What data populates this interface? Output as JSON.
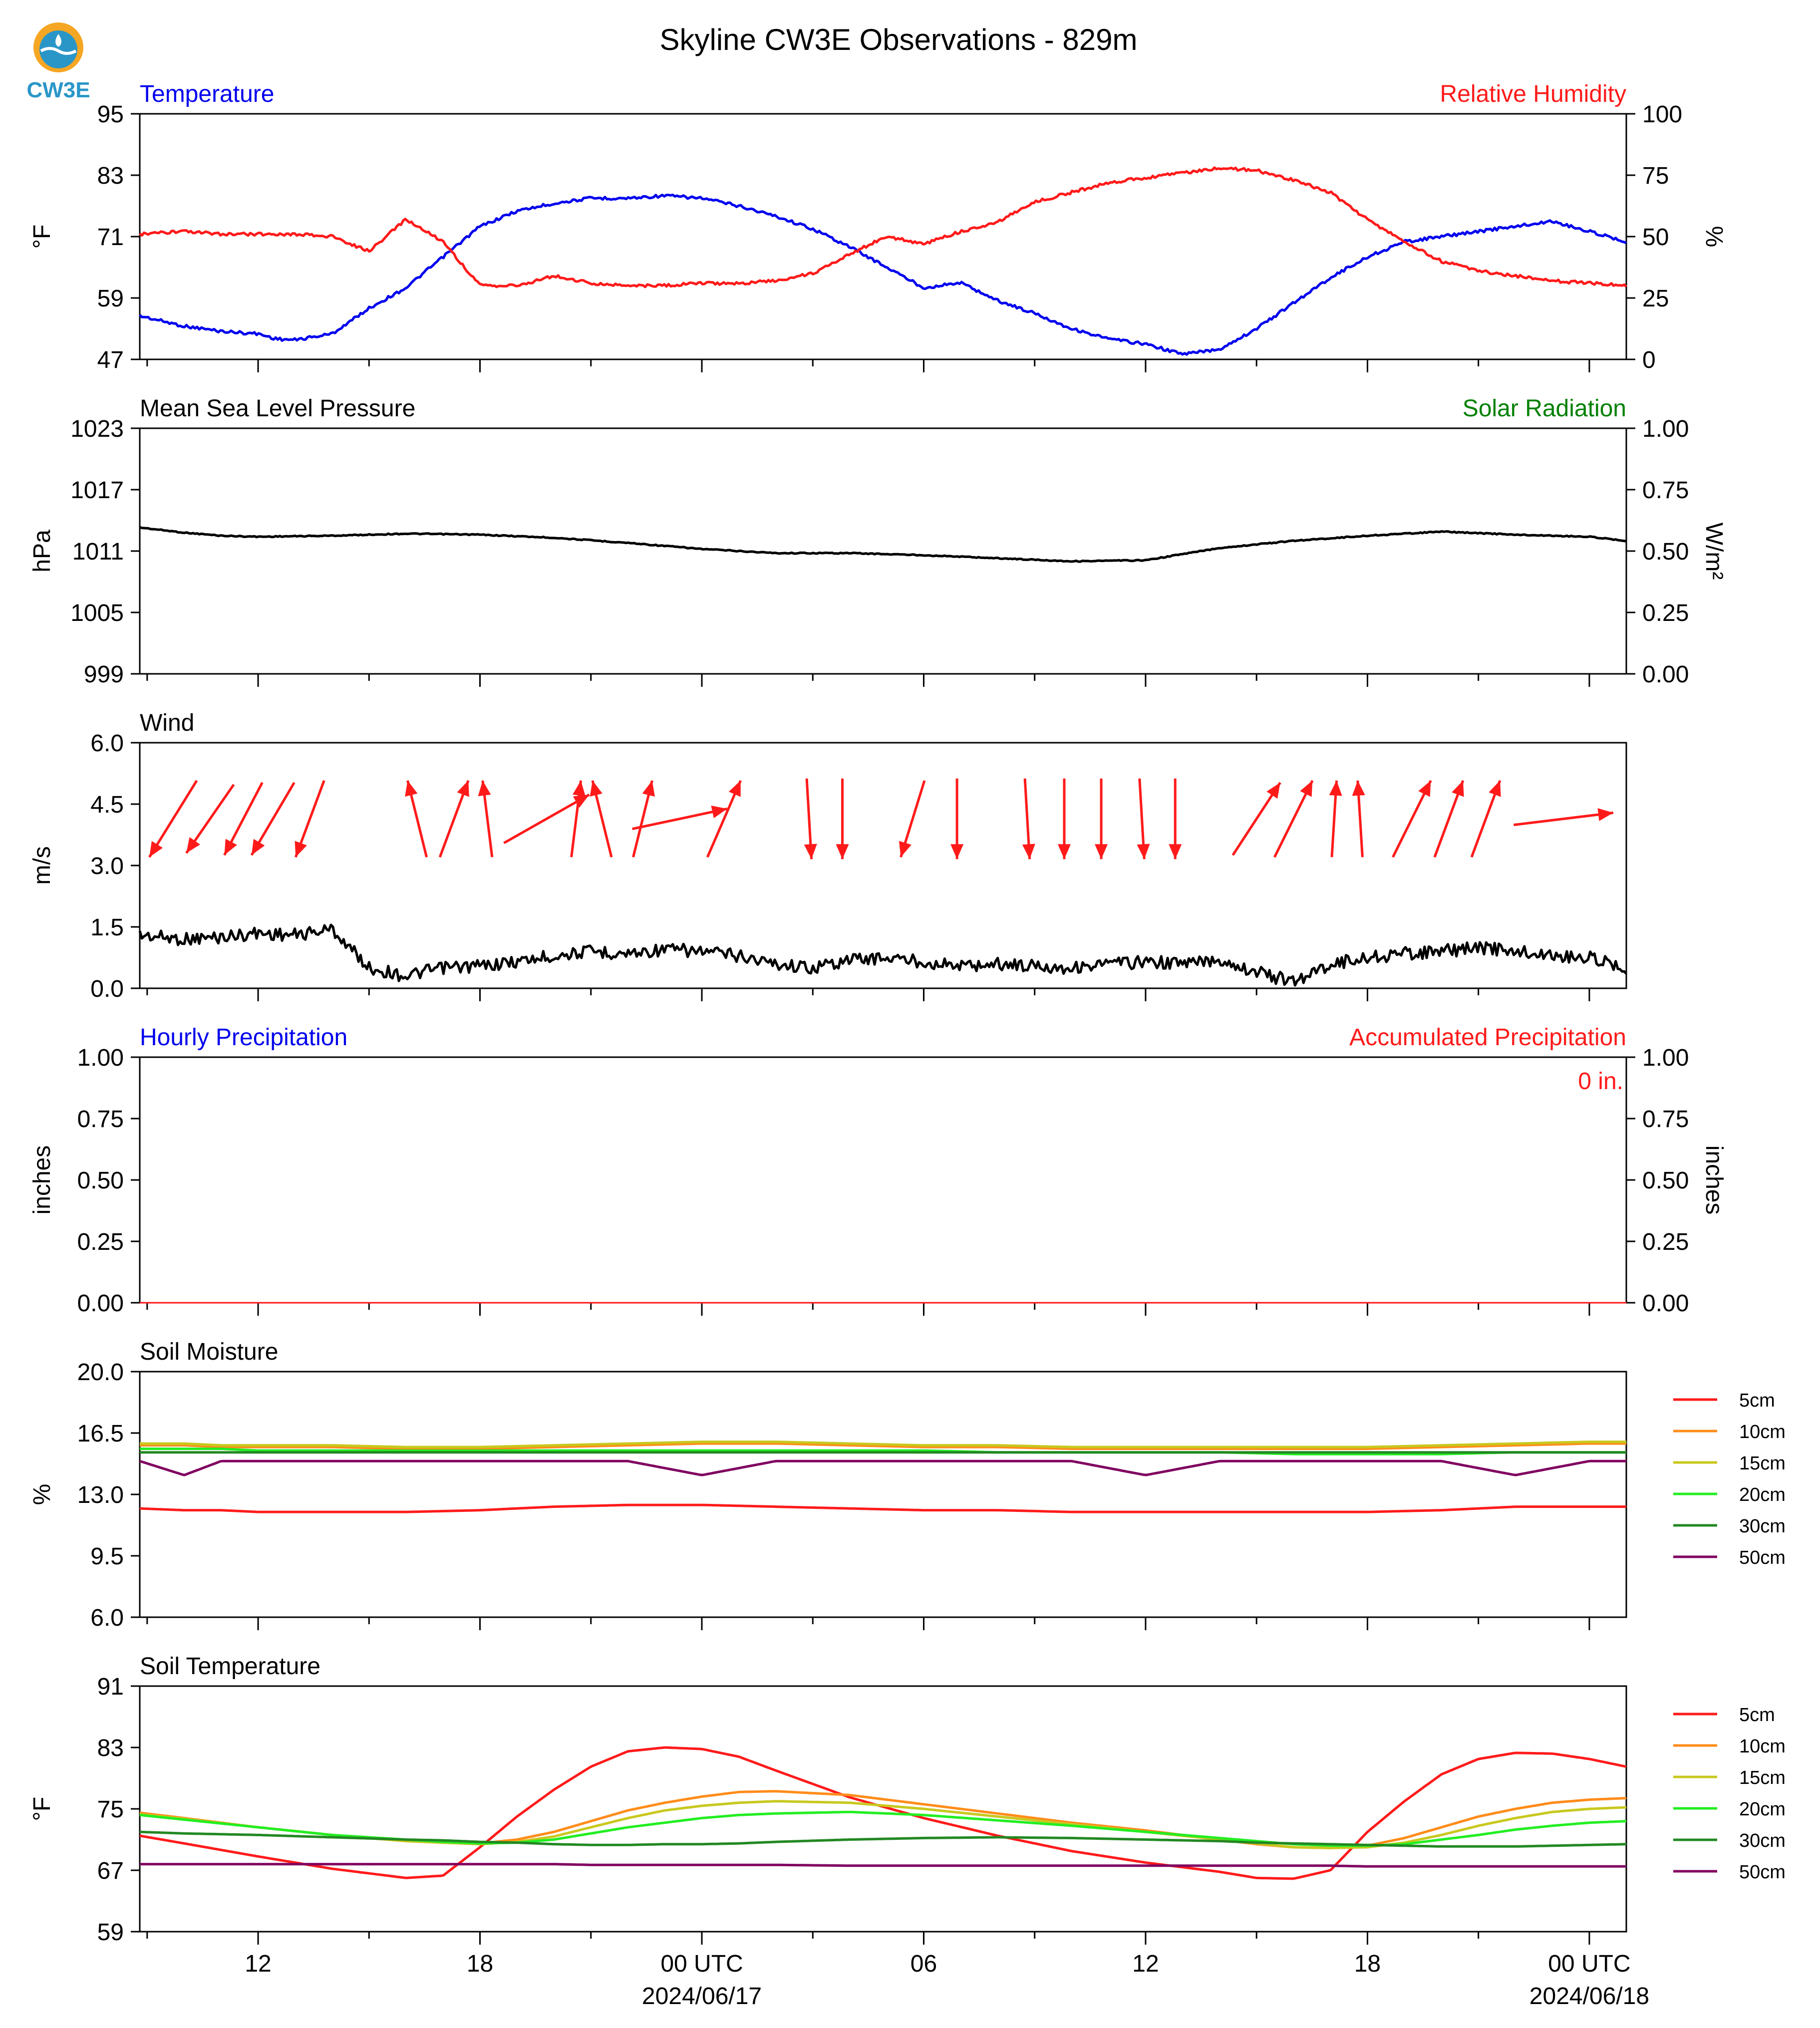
{
  "title": "Skyline CW3E Observations - 829m",
  "logo": {
    "text": "CW3E",
    "color": "#2a96c8",
    "accent": "#f5a623"
  },
  "colors": {
    "blue": "#0000ee",
    "red": "#ff1a1a",
    "green": "#008000",
    "black": "#000000"
  },
  "x_axis": {
    "ticks": [
      {
        "h": 12,
        "label": "12"
      },
      {
        "h": 18,
        "label": "18"
      },
      {
        "h": 24,
        "label": "00 UTC",
        "sublabel": "2024/06/17"
      },
      {
        "h": 30,
        "label": "06"
      },
      {
        "h": 36,
        "label": "12"
      },
      {
        "h": 42,
        "label": "18"
      },
      {
        "h": 48,
        "label": "00 UTC",
        "sublabel": "2024/06/18"
      }
    ]
  },
  "chart_data": [
    {
      "type": "line",
      "title_left": "Temperature",
      "title_right": "Relative Humidity",
      "ylabel": "°F",
      "ylabel_right": "%",
      "ylim": [
        47,
        95
      ],
      "yticks": [
        "95",
        "83",
        "71",
        "59",
        "47"
      ],
      "ylim_right": [
        0,
        100
      ],
      "yticks_right": [
        "100",
        "75",
        "50",
        "25",
        "0"
      ],
      "x": [
        8.8,
        10,
        11,
        12,
        12.5,
        13,
        14,
        15,
        16,
        17,
        18,
        19,
        20,
        21,
        22,
        23,
        24,
        25,
        26,
        27,
        28,
        29,
        30,
        31,
        32,
        33,
        34,
        35,
        36,
        37,
        38,
        39,
        40,
        41,
        42,
        43,
        44,
        45,
        46,
        47,
        48,
        49
      ],
      "series": [
        {
          "name": "Temperature",
          "color": "#0000ee",
          "axis": "left",
          "values": [
            55.5,
            53.5,
            52.5,
            52,
            51,
            50.8,
            52,
            57,
            61,
            67,
            73,
            76,
            77.5,
            78.5,
            78.5,
            79,
            78.5,
            77,
            75,
            72.5,
            69,
            65,
            61,
            62,
            58.5,
            56,
            53,
            51,
            50,
            48,
            49,
            53,
            58,
            63,
            67,
            70,
            71,
            72,
            73,
            74,
            72,
            70
          ]
        },
        {
          "name": "Relative Humidity",
          "color": "#ff1a1a",
          "axis": "right",
          "values": [
            51,
            52,
            51,
            51,
            51,
            51,
            50,
            44,
            57,
            48,
            30,
            30,
            34,
            31,
            30,
            30,
            31,
            31,
            32,
            35,
            43,
            50,
            47,
            52,
            56,
            64,
            68,
            72,
            74,
            76,
            78,
            77,
            73,
            68,
            57,
            48,
            40,
            36,
            34,
            32,
            31,
            30
          ]
        }
      ]
    },
    {
      "type": "line",
      "title_left": "Mean Sea Level Pressure",
      "title_right": "Solar Radiation",
      "ylabel": "hPa",
      "ylabel_right": "W/m²",
      "ylim": [
        999,
        1023
      ],
      "yticks": [
        "1023",
        "1017",
        "1011",
        "1005",
        "999"
      ],
      "ylim_right": [
        0,
        1
      ],
      "yticks_right": [
        "1.00",
        "0.75",
        "0.50",
        "0.25",
        "0.00"
      ],
      "x": [
        8.8,
        10,
        11,
        12,
        14,
        16,
        18,
        20,
        22,
        24,
        26,
        28,
        30,
        32,
        34,
        36,
        38,
        40,
        42,
        44,
        46,
        48,
        49
      ],
      "series": [
        {
          "name": "Mean Sea Level Pressure",
          "color": "#000000",
          "axis": "left",
          "values": [
            1013.3,
            1012.8,
            1012.5,
            1012.4,
            1012.5,
            1012.7,
            1012.6,
            1012.3,
            1011.8,
            1011.2,
            1010.8,
            1010.8,
            1010.6,
            1010.3,
            1010.0,
            1010.1,
            1011.3,
            1012.0,
            1012.5,
            1012.9,
            1012.6,
            1012.4,
            1012.0
          ]
        }
      ]
    },
    {
      "type": "line",
      "title_left": "Wind",
      "ylabel": "m/s",
      "ylim": [
        0,
        6
      ],
      "yticks": [
        "6.0",
        "4.5",
        "3.0",
        "1.5",
        "0.0"
      ],
      "x": [
        8.8,
        10,
        11,
        12,
        13,
        14,
        15,
        16,
        17,
        18,
        19,
        20,
        21,
        22,
        23,
        24,
        25,
        26,
        27,
        28,
        29,
        30,
        31,
        32,
        33,
        34,
        35,
        36,
        37,
        38,
        39,
        40,
        41,
        42,
        43,
        44,
        45,
        46,
        47,
        48,
        49
      ],
      "series": [
        {
          "name": "Wind",
          "color": "#000000",
          "axis": "left",
          "values": [
            1.3,
            1.2,
            1.25,
            1.35,
            1.3,
            1.45,
            0.5,
            0.3,
            0.5,
            0.55,
            0.65,
            0.8,
            0.9,
            0.85,
            0.95,
            0.9,
            0.8,
            0.6,
            0.5,
            0.7,
            0.75,
            0.65,
            0.55,
            0.6,
            0.55,
            0.5,
            0.6,
            0.65,
            0.6,
            0.7,
            0.4,
            0.15,
            0.6,
            0.75,
            0.85,
            0.9,
            1.0,
            0.9,
            0.8,
            0.75,
            0.5
          ]
        }
      ],
      "arrows_color": "#ff1a1a",
      "arrows": [
        {
          "x": 9.7,
          "dx": -1.0,
          "dy": -1.9
        },
        {
          "x": 10.7,
          "dx": -1.0,
          "dy": -1.7
        },
        {
          "x": 11.6,
          "dx": -0.8,
          "dy": -1.8
        },
        {
          "x": 12.4,
          "dx": -0.9,
          "dy": -1.8
        },
        {
          "x": 13.4,
          "dx": -0.6,
          "dy": -1.9
        },
        {
          "x": 16.3,
          "dx": -0.4,
          "dy": 1.9
        },
        {
          "x": 17.3,
          "dx": 0.6,
          "dy": 1.9
        },
        {
          "x": 18.2,
          "dx": -0.2,
          "dy": 1.9
        },
        {
          "x": 19.8,
          "dx": 1.8,
          "dy": 1.2
        },
        {
          "x": 20.6,
          "dx": 0.2,
          "dy": 1.9
        },
        {
          "x": 21.3,
          "dx": -0.4,
          "dy": 1.9
        },
        {
          "x": 22.4,
          "dx": 0.4,
          "dy": 1.9
        },
        {
          "x": 23.4,
          "dx": 2.0,
          "dy": 0.5
        },
        {
          "x": 24.6,
          "dx": 0.7,
          "dy": 1.9
        },
        {
          "x": 26.9,
          "dx": 0.1,
          "dy": -2.0
        },
        {
          "x": 27.8,
          "dx": 0.0,
          "dy": -2.0
        },
        {
          "x": 29.7,
          "dx": -0.5,
          "dy": -1.9
        },
        {
          "x": 30.9,
          "dx": 0.0,
          "dy": -2.0
        },
        {
          "x": 32.8,
          "dx": 0.1,
          "dy": -2.0
        },
        {
          "x": 33.8,
          "dx": 0.0,
          "dy": -2.0
        },
        {
          "x": 34.8,
          "dx": 0.0,
          "dy": -2.0
        },
        {
          "x": 35.9,
          "dx": 0.1,
          "dy": -2.0
        },
        {
          "x": 36.8,
          "dx": 0.0,
          "dy": -2.0
        },
        {
          "x": 39.0,
          "dx": 1.0,
          "dy": 1.8
        },
        {
          "x": 40.0,
          "dx": 0.8,
          "dy": 1.9
        },
        {
          "x": 41.1,
          "dx": 0.1,
          "dy": 1.9
        },
        {
          "x": 41.8,
          "dx": -0.1,
          "dy": 1.9
        },
        {
          "x": 43.2,
          "dx": 0.8,
          "dy": 1.9
        },
        {
          "x": 44.2,
          "dx": 0.6,
          "dy": 1.9
        },
        {
          "x": 45.2,
          "dx": 0.6,
          "dy": 1.9
        },
        {
          "x": 47.3,
          "dx": 2.1,
          "dy": 0.3
        }
      ]
    },
    {
      "type": "bar",
      "title_left": "Hourly Precipitation",
      "title_right": "Accumulated Precipitation",
      "annotation": "0 in.",
      "ylabel": "inches",
      "ylabel_right": "inches",
      "ylim": [
        0,
        1
      ],
      "yticks": [
        "1.00",
        "0.75",
        "0.50",
        "0.25",
        "0.00"
      ],
      "ylim_right": [
        0,
        1
      ],
      "yticks_right": [
        "1.00",
        "0.75",
        "0.50",
        "0.25",
        "0.00"
      ],
      "x": [
        8.8,
        49
      ],
      "series": [
        {
          "name": "Hourly Precipitation",
          "color": "#0000ee",
          "axis": "left",
          "values": [
            0,
            0
          ]
        },
        {
          "name": "Accumulated Precipitation",
          "color": "#ff1a1a",
          "axis": "right",
          "values": [
            0,
            0
          ]
        }
      ]
    },
    {
      "type": "line",
      "title_left": "Soil Moisture",
      "ylabel": "%",
      "ylim": [
        6,
        20
      ],
      "yticks": [
        "20.0",
        "16.5",
        "13.0",
        "9.5",
        "6.0"
      ],
      "x": [
        8.8,
        10,
        11,
        12,
        14,
        16,
        18,
        20,
        22,
        24,
        26,
        28,
        30,
        32,
        34,
        36,
        38,
        40,
        42,
        44,
        46,
        48,
        49
      ],
      "series": [
        {
          "name": "5cm",
          "color": "#ff1a1a",
          "values": [
            12.2,
            12.1,
            12.1,
            12.0,
            12.0,
            12.0,
            12.1,
            12.3,
            12.4,
            12.4,
            12.3,
            12.2,
            12.1,
            12.1,
            12.0,
            12.0,
            12.0,
            12.0,
            12.0,
            12.1,
            12.3,
            12.3,
            12.3
          ]
        },
        {
          "name": "10cm",
          "color": "#ff8c1a",
          "values": [
            15.8,
            15.8,
            15.7,
            15.7,
            15.7,
            15.6,
            15.6,
            15.7,
            15.8,
            15.9,
            15.9,
            15.8,
            15.7,
            15.7,
            15.6,
            15.6,
            15.6,
            15.6,
            15.6,
            15.7,
            15.8,
            15.9,
            15.9
          ]
        },
        {
          "name": "15cm",
          "color": "#c8c81e",
          "values": [
            15.9,
            15.9,
            15.8,
            15.8,
            15.8,
            15.7,
            15.7,
            15.8,
            15.9,
            16.0,
            16.0,
            15.9,
            15.8,
            15.8,
            15.7,
            15.7,
            15.7,
            15.7,
            15.7,
            15.8,
            15.9,
            16.0,
            16.0
          ]
        },
        {
          "name": "20cm",
          "color": "#22ee22",
          "values": [
            15.6,
            15.6,
            15.6,
            15.5,
            15.5,
            15.5,
            15.5,
            15.5,
            15.5,
            15.5,
            15.5,
            15.5,
            15.5,
            15.4,
            15.4,
            15.4,
            15.4,
            15.3,
            15.3,
            15.3,
            15.4,
            15.4,
            15.4
          ]
        },
        {
          "name": "30cm",
          "color": "#228822",
          "values": [
            15.4,
            15.4,
            15.4,
            15.4,
            15.4,
            15.4,
            15.4,
            15.4,
            15.4,
            15.4,
            15.4,
            15.4,
            15.4,
            15.4,
            15.4,
            15.4,
            15.4,
            15.4,
            15.4,
            15.4,
            15.4,
            15.4,
            15.4
          ]
        },
        {
          "name": "50cm",
          "color": "#800060",
          "values": [
            14.9,
            14.1,
            14.9,
            14.9,
            14.9,
            14.9,
            14.9,
            14.9,
            14.9,
            14.1,
            14.9,
            14.9,
            14.9,
            14.9,
            14.9,
            14.1,
            14.9,
            14.9,
            14.9,
            14.9,
            14.1,
            14.9,
            14.9
          ]
        }
      ]
    },
    {
      "type": "line",
      "title_left": "Soil Temperature",
      "ylabel": "°F",
      "ylim": [
        59,
        91
      ],
      "yticks": [
        "91",
        "83",
        "75",
        "67",
        "59"
      ],
      "x": [
        8.8,
        10,
        12,
        14,
        16,
        17,
        18,
        19,
        20,
        21,
        22,
        23,
        24,
        25,
        26,
        28,
        30,
        32,
        34,
        36,
        38,
        39,
        40,
        41,
        42,
        43,
        44,
        45,
        46,
        47,
        48,
        49
      ],
      "series": [
        {
          "name": "5cm",
          "color": "#ff1a1a",
          "values": [
            71.5,
            70.5,
            68.8,
            67.2,
            66.0,
            66.3,
            70.0,
            74.0,
            77.5,
            80.5,
            82.5,
            83.0,
            82.8,
            81.8,
            80.0,
            76.5,
            73.8,
            71.5,
            69.5,
            68.0,
            66.8,
            66.0,
            65.9,
            67.0,
            72.0,
            76.0,
            79.5,
            81.5,
            82.3,
            82.2,
            81.5,
            80.5
          ]
        },
        {
          "name": "10cm",
          "color": "#ff8c1a",
          "values": [
            74.5,
            73.8,
            72.6,
            71.6,
            70.8,
            70.6,
            70.5,
            71.0,
            72.0,
            73.4,
            74.8,
            75.8,
            76.6,
            77.2,
            77.3,
            76.8,
            75.6,
            74.4,
            73.2,
            72.2,
            71.0,
            70.4,
            70.0,
            69.9,
            70.2,
            71.2,
            72.6,
            74.0,
            75.0,
            75.8,
            76.2,
            76.4
          ]
        },
        {
          "name": "15cm",
          "color": "#c8c81e",
          "values": [
            74.3,
            73.7,
            72.6,
            71.6,
            70.8,
            70.6,
            70.4,
            70.7,
            71.4,
            72.6,
            73.8,
            74.8,
            75.4,
            75.8,
            76.0,
            75.8,
            75.0,
            74.0,
            73.0,
            72.0,
            71.0,
            70.5,
            70.0,
            69.9,
            70.0,
            70.6,
            71.6,
            72.8,
            73.8,
            74.6,
            75.0,
            75.2
          ]
        },
        {
          "name": "20cm",
          "color": "#22ee22",
          "values": [
            74.2,
            73.6,
            72.6,
            71.6,
            71.0,
            70.7,
            70.5,
            70.6,
            71.0,
            71.8,
            72.6,
            73.2,
            73.8,
            74.2,
            74.4,
            74.6,
            74.2,
            73.5,
            72.8,
            72.0,
            71.2,
            70.8,
            70.4,
            70.2,
            70.2,
            70.4,
            71.0,
            71.6,
            72.3,
            72.8,
            73.2,
            73.4
          ]
        },
        {
          "name": "30cm",
          "color": "#228822",
          "values": [
            72.0,
            71.8,
            71.6,
            71.3,
            71.0,
            70.9,
            70.7,
            70.6,
            70.4,
            70.3,
            70.3,
            70.4,
            70.4,
            70.5,
            70.7,
            71.0,
            71.2,
            71.3,
            71.2,
            71.0,
            70.8,
            70.6,
            70.5,
            70.4,
            70.3,
            70.2,
            70.1,
            70.1,
            70.1,
            70.2,
            70.3,
            70.4
          ]
        },
        {
          "name": "50cm",
          "color": "#800060",
          "values": [
            67.8,
            67.8,
            67.8,
            67.8,
            67.8,
            67.8,
            67.8,
            67.8,
            67.8,
            67.7,
            67.7,
            67.7,
            67.7,
            67.7,
            67.7,
            67.6,
            67.6,
            67.6,
            67.6,
            67.6,
            67.6,
            67.6,
            67.6,
            67.6,
            67.5,
            67.5,
            67.5,
            67.5,
            67.5,
            67.5,
            67.5,
            67.5
          ]
        }
      ]
    }
  ]
}
